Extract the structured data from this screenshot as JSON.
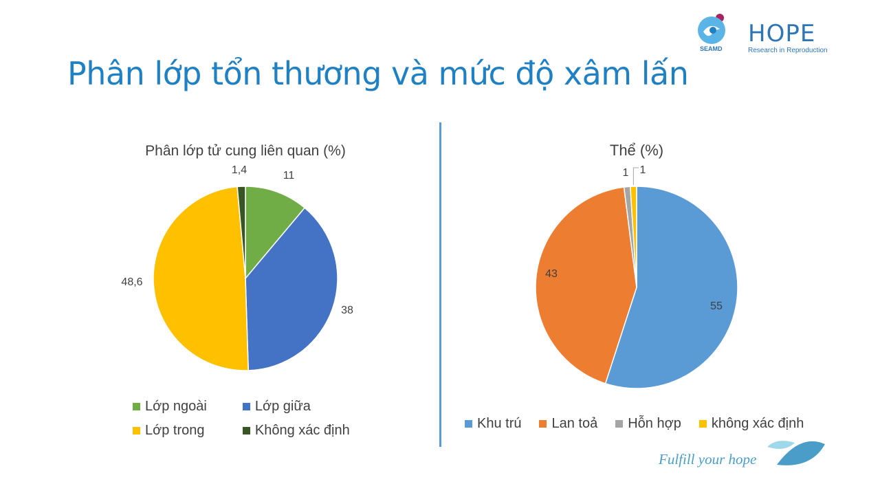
{
  "slide": {
    "title": "Phân lớp tổn thương và mức độ xâm lấn",
    "logos": {
      "seamd": "SEAMD",
      "hope_word": "HOPE",
      "hope_sub": "Research in Reproduction"
    },
    "footer": "Fulfill your hope"
  },
  "chart_data": [
    {
      "type": "pie",
      "title": "Phân lớp tử cung liên quan (%)",
      "categories": [
        "Lớp ngoài",
        "Lớp giữa",
        "Lớp trong",
        "Không xác định"
      ],
      "values": [
        11,
        38,
        48.6,
        1.4
      ],
      "value_labels": [
        "11",
        "38",
        "48,6",
        "1,4"
      ],
      "colors": [
        "#70ad47",
        "#4472c4",
        "#ffc000",
        "#375623"
      ],
      "legend": "bottom"
    },
    {
      "type": "pie",
      "title": "Thể (%)",
      "categories": [
        "Khu trú",
        "Lan toả",
        "Hỗn hợp",
        "không xác định"
      ],
      "values": [
        55,
        43,
        1,
        1
      ],
      "value_labels": [
        "55",
        "43",
        "1",
        "1"
      ],
      "colors": [
        "#5b9bd5",
        "#ed7d31",
        "#a5a5a5",
        "#ffc000"
      ],
      "legend": "bottom"
    }
  ]
}
